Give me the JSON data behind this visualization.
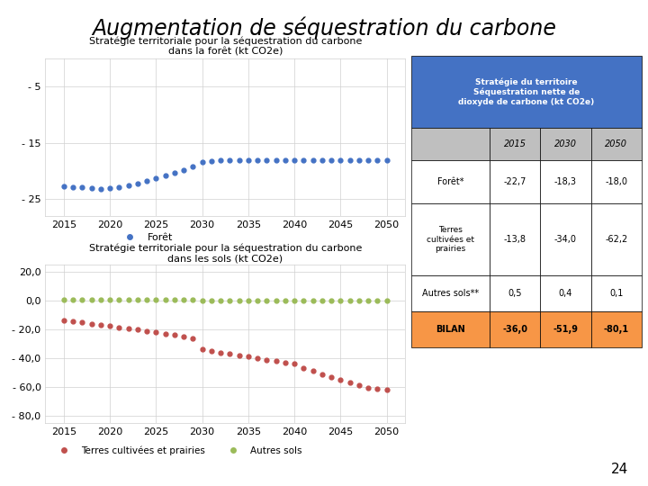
{
  "title": "Augmentation de séquestration du carbone",
  "title_color": "#000000",
  "background_color": "#FFFFFF",
  "chart1_title": "Stratégie territoriale pour la séquestration du carbone\ndans la forêt (kt CO2e)",
  "chart2_title": "Stratégie territoriale pour la séquestration du carbone\ndans les sols (kt CO2e)",
  "years": [
    2015,
    2016,
    2017,
    2018,
    2019,
    2020,
    2021,
    2022,
    2023,
    2024,
    2025,
    2026,
    2027,
    2028,
    2029,
    2030,
    2031,
    2032,
    2033,
    2034,
    2035,
    2036,
    2037,
    2038,
    2039,
    2040,
    2041,
    2042,
    2043,
    2044,
    2045,
    2046,
    2047,
    2048,
    2049,
    2050
  ],
  "foret_values": [
    -22.7,
    -22.8,
    -22.9,
    -23.0,
    -23.1,
    -23.0,
    -22.8,
    -22.5,
    -22.2,
    -21.8,
    -21.3,
    -20.8,
    -20.3,
    -19.8,
    -19.2,
    -18.3,
    -18.2,
    -18.1,
    -18.1,
    -18.0,
    -18.0,
    -18.0,
    -18.0,
    -18.0,
    -18.0,
    -18.0,
    -18.0,
    -18.0,
    -18.0,
    -18.0,
    -18.0,
    -18.0,
    -18.0,
    -18.0,
    -18.0,
    -18.0
  ],
  "terres_values": [
    -13.8,
    -14.5,
    -15.2,
    -16.0,
    -16.8,
    -17.6,
    -18.5,
    -19.3,
    -20.2,
    -21.1,
    -22.0,
    -23.0,
    -24.0,
    -25.0,
    -26.0,
    -34.0,
    -35.0,
    -36.0,
    -37.0,
    -38.0,
    -39.0,
    -40.0,
    -41.0,
    -42.0,
    -43.0,
    -44.0,
    -47.0,
    -49.0,
    -51.0,
    -53.0,
    -55.0,
    -57.0,
    -59.0,
    -60.5,
    -61.5,
    -62.2
  ],
  "autres_sols_values": [
    0.5,
    0.5,
    0.5,
    0.5,
    0.5,
    0.5,
    0.5,
    0.5,
    0.5,
    0.5,
    0.5,
    0.5,
    0.5,
    0.5,
    0.5,
    0.4,
    0.4,
    0.4,
    0.4,
    0.4,
    0.4,
    0.4,
    0.4,
    0.4,
    0.4,
    0.4,
    0.3,
    0.3,
    0.3,
    0.2,
    0.2,
    0.2,
    0.2,
    0.1,
    0.1,
    0.1
  ],
  "foret_color": "#4472C4",
  "terres_color": "#C0504D",
  "autres_sols_color": "#9BBB59",
  "chart1_yticks": [
    -5,
    -15,
    -25
  ],
  "chart1_ylim": [
    -28,
    0
  ],
  "chart2_yticks": [
    20.0,
    0.0,
    -20.0,
    -40.0,
    -60.0,
    -80.0
  ],
  "chart2_ylim": [
    -85,
    25
  ],
  "table_header_bg": "#4472C4",
  "table_header_color": "#FFFFFF",
  "table_year_bg": "#BFBFBF",
  "table_bilan_bg": "#F79646",
  "table_data": {
    "rows": [
      "Forêt*",
      "Terres\ncultivées et\nprairies",
      "Autres sols**",
      "BILAN"
    ],
    "cols": [
      "2015",
      "2030",
      "2050"
    ],
    "values": [
      [
        "-22,7",
        "-18,3",
        "-18,0"
      ],
      [
        "-13,8",
        "-34,0",
        "-62,2"
      ],
      [
        "0,5",
        "0,4",
        "0,1"
      ],
      [
        "-36,0",
        "-51,9",
        "-80,1"
      ]
    ]
  },
  "page_number": "24"
}
